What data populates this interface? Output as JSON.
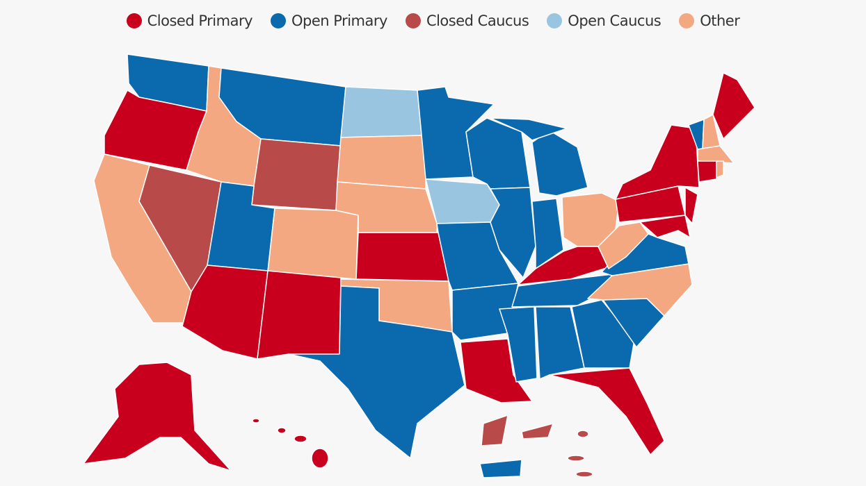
{
  "legend": [
    {
      "label": "Closed Primary",
      "color": "#c8001e"
    },
    {
      "label": "Open Primary",
      "color": "#0a6aad"
    },
    {
      "label": "Closed Caucus",
      "color": "#b84a4a"
    },
    {
      "label": "Open Caucus",
      "color": "#99c5e0"
    },
    {
      "label": "Other",
      "color": "#f4a882"
    }
  ]
}
